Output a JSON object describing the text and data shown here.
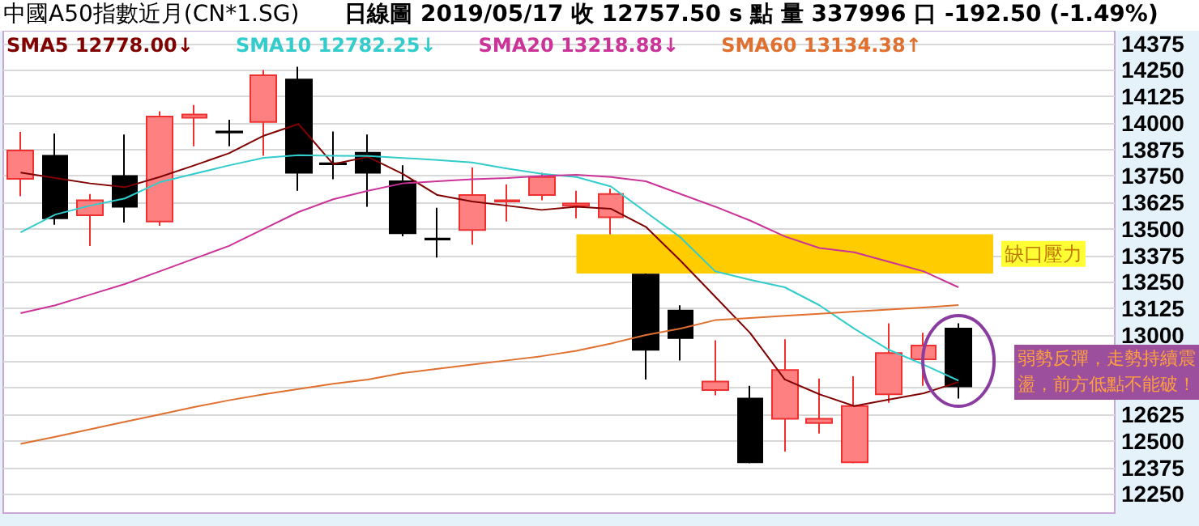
{
  "chart_data": {
    "type": "candlestick",
    "title": "中國A50指數近月(CN*1.SG)",
    "subtitle": "日線圖  2019/05/17  收 12757.50 s 點  量 337996 口  -192.50 (-1.49%)",
    "categories": [
      null,
      null,
      null,
      null,
      null,
      null,
      null,
      null,
      null,
      null,
      null,
      null,
      null,
      null,
      null,
      null,
      null,
      null,
      null,
      null,
      null,
      null,
      null,
      null,
      null,
      null,
      null,
      null
    ],
    "ohlc": [
      [
        13736,
        13958,
        13654,
        13870
      ],
      [
        13845,
        13950,
        13520,
        13550
      ],
      [
        13565,
        13665,
        13420,
        13635
      ],
      [
        13750,
        13945,
        13530,
        13605
      ],
      [
        13535,
        14055,
        13515,
        14030
      ],
      [
        14025,
        14085,
        13890,
        14040
      ],
      [
        13960,
        14015,
        13890,
        13955
      ],
      [
        14005,
        14250,
        13845,
        14225
      ],
      [
        14205,
        14265,
        13680,
        13765
      ],
      [
        13810,
        13960,
        13735,
        13805
      ],
      [
        13860,
        13945,
        13605,
        13765
      ],
      [
        13725,
        13800,
        13465,
        13480
      ],
      [
        13455,
        13600,
        13365,
        13450
      ],
      [
        13495,
        13790,
        13425,
        13660
      ],
      [
        13630,
        13710,
        13535,
        13635
      ],
      [
        13660,
        13765,
        13635,
        13745
      ],
      [
        13610,
        13680,
        13550,
        13620
      ],
      [
        13555,
        13690,
        13475,
        13665
      ],
      [
        13285,
        13290,
        12790,
        12930
      ],
      [
        13115,
        13140,
        12880,
        12985
      ],
      [
        12740,
        12975,
        12715,
        12780
      ],
      [
        12700,
        12760,
        12395,
        12400
      ],
      [
        12605,
        12980,
        12450,
        12835
      ],
      [
        12585,
        12795,
        12535,
        12605
      ],
      [
        12400,
        12805,
        12395,
        12665
      ],
      [
        12720,
        13055,
        12680,
        12915
      ],
      [
        12885,
        13010,
        12760,
        12950
      ],
      [
        13030,
        13055,
        12700,
        12757.5
      ]
    ],
    "colors": [
      "#ff8080",
      "#000000",
      "#ff8080",
      "#000000",
      "#ff8080",
      "#ff8080",
      "#000000",
      "#ff8080",
      "#000000",
      "#000000",
      "#000000",
      "#000000",
      "#000000",
      "#ff8080",
      "#ff8080",
      "#ff8080",
      "#ff8080",
      "#ff8080",
      "#000000",
      "#000000",
      "#ff8080",
      "#000000",
      "#ff8080",
      "#ff8080",
      "#ff8080",
      "#ff8080",
      "#ff8080",
      "#000000"
    ],
    "series": [
      {
        "type": "line",
        "name": "SMA5 12778.00↓",
        "color": "#800000",
        "values": [
          13766,
          13740,
          13715,
          13697,
          13745,
          13800,
          13857,
          13940,
          13995,
          13806,
          13840,
          13760,
          13660,
          13630,
          13610,
          13590,
          13605,
          13595,
          13510,
          13350,
          13180,
          13010,
          12790,
          12720,
          12665,
          12695,
          12725,
          12778
        ]
      },
      {
        "type": "line",
        "name": "SMA10 12782.25↓",
        "color": "#33cccc",
        "values": [
          13484,
          13568,
          13610,
          13644,
          13720,
          13760,
          13800,
          13836,
          13848,
          13845,
          13844,
          13835,
          13825,
          13814,
          13785,
          13760,
          13745,
          13700,
          13580,
          13460,
          13300,
          13260,
          13225,
          13140,
          13030,
          12930,
          12860,
          12785
        ]
      },
      {
        "type": "line",
        "name": "SMA20 13218.88↓",
        "color": "#cc3399",
        "values": [
          13103,
          13140,
          13190,
          13240,
          13300,
          13360,
          13420,
          13500,
          13580,
          13640,
          13680,
          13715,
          13725,
          13735,
          13740,
          13750,
          13756,
          13745,
          13725,
          13665,
          13605,
          13540,
          13465,
          13410,
          13390,
          13345,
          13300,
          13225
        ]
      },
      {
        "type": "line",
        "name": "SMA60 13134.38↑",
        "color": "#e07030",
        "values": [
          12486,
          12520,
          12555,
          12590,
          12625,
          12660,
          12692,
          12720,
          12745,
          12770,
          12790,
          12820,
          12840,
          12860,
          12880,
          12900,
          12925,
          12960,
          13000,
          13030,
          13070,
          13080,
          13090,
          13100,
          13110,
          13120,
          13130,
          13141
        ]
      }
    ],
    "ylim": [
      12160,
      14435
    ],
    "yticks": [
      12250,
      12375,
      12500,
      12625,
      {
        "value": 12750,
        "label": null
      },
      {
        "value": 12875,
        "label": null
      },
      13000,
      13125,
      13250,
      13375,
      13500,
      13625,
      13750,
      13875,
      14000,
      14125,
      14250,
      14375
    ],
    "grid": "y",
    "legend": "top",
    "marker": "none",
    "line_style": "solid",
    "bands": [
      {
        "axis": "y",
        "from": 13290,
        "to": 13475,
        "label": "缺口壓力",
        "color": "#ffcc00"
      }
    ],
    "annotations": [
      "弱勢反彈，走勢持續震盪，前方低點不能破！"
    ]
  }
}
